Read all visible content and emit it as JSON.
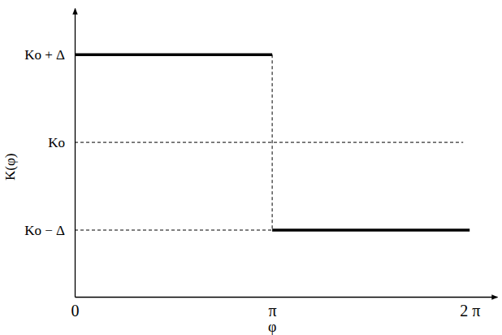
{
  "chart_data": {
    "type": "line",
    "x_label": "φ",
    "y_label": "K(φ)",
    "xlim": [
      0,
      6.72
    ],
    "ylim": [
      -1.76,
      1.53
    ],
    "xticks": [
      0,
      {
        "value": 3.14159,
        "label": "π"
      },
      {
        "value": 6.28319,
        "label": "2 π"
      }
    ],
    "yticks": [
      {
        "value": 1,
        "label": "Ko + Δ"
      },
      {
        "value": 0,
        "label": "Ko"
      },
      {
        "value": -1,
        "label": "Ko − Δ"
      }
    ],
    "grid": false,
    "series": [
      {
        "x": [
          0,
          3.14159
        ],
        "values": [
          1,
          1
        ],
        "color": "#000000",
        "line_style": "solid"
      },
      {
        "x": [
          3.14159,
          6.28319
        ],
        "values": [
          -1,
          -1
        ],
        "color": "#000000",
        "line_style": "solid"
      },
      {
        "x": [
          3.14159,
          3.14159
        ],
        "values": [
          1,
          -1
        ],
        "color": "#000000",
        "line_style": "dashed"
      },
      {
        "x": [
          0,
          6.18
        ],
        "values": [
          0,
          0
        ],
        "color": "#000000",
        "line_style": "dashed"
      },
      {
        "x": [
          0,
          3.14159
        ],
        "values": [
          -1,
          -1
        ],
        "color": "#000000",
        "line_style": "dashed"
      }
    ]
  }
}
